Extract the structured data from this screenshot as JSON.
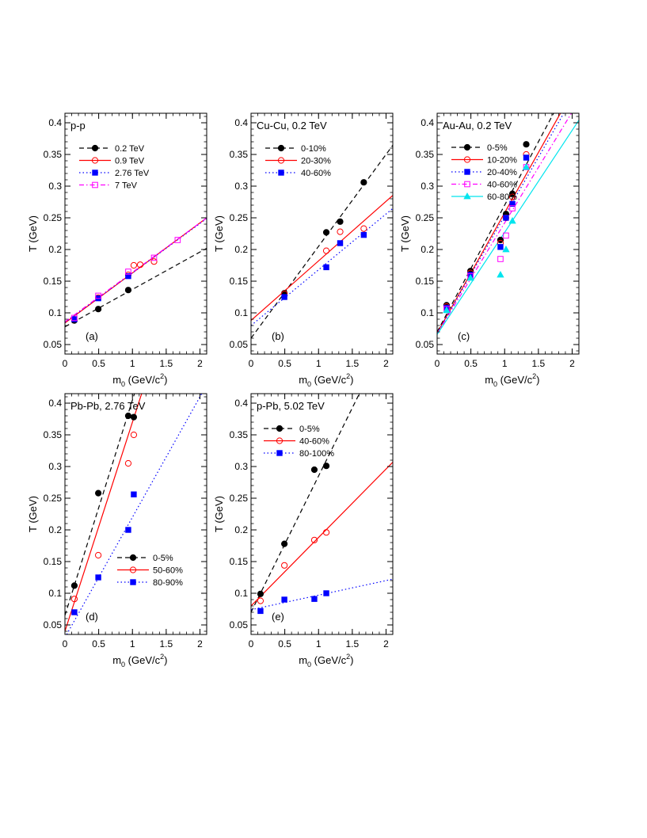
{
  "chart_data": [
    {
      "type": "scatter",
      "panel_tag": "(a)",
      "title": "p-p",
      "xlabel": "m0 (GeV/c2)",
      "ylabel": "T (GeV)",
      "xlim": [
        0,
        2.1
      ],
      "ylim": [
        0.035,
        0.415
      ],
      "xticks": [
        {
          "v": 0,
          "t": "0"
        },
        {
          "v": 0.5,
          "t": "0.5"
        },
        {
          "v": 1,
          "t": "1"
        },
        {
          "v": 1.5,
          "t": "1.5"
        },
        {
          "v": 2,
          "t": "2"
        }
      ],
      "yticks": [
        {
          "v": 0.05,
          "t": "0.05"
        },
        {
          "v": 0.1,
          "t": "0.1"
        },
        {
          "v": 0.15,
          "t": "0.15"
        },
        {
          "v": 0.2,
          "t": "0.2"
        },
        {
          "v": 0.25,
          "t": "0.25"
        },
        {
          "v": 0.3,
          "t": "0.3"
        },
        {
          "v": 0.35,
          "t": "0.35"
        },
        {
          "v": 0.4,
          "t": "0.4"
        }
      ],
      "legend_position": "top-left",
      "series": [
        {
          "name": "0.2 TeV",
          "color": "#000000",
          "marker": "circle-filled",
          "line": "dashed",
          "fit": [
            0.078,
            0.059
          ],
          "points": [
            [
              0.14,
              0.088
            ],
            [
              0.494,
              0.106
            ],
            [
              0.938,
              0.136
            ]
          ]
        },
        {
          "name": "0.9 TeV",
          "color": "#ff0000",
          "marker": "circle-open",
          "line": "solid",
          "fit": [
            0.084,
            0.079
          ],
          "points": [
            [
              0.494,
              0.124
            ],
            [
              0.938,
              0.16
            ],
            [
              1.02,
              0.175
            ],
            [
              1.115,
              0.176
            ],
            [
              1.32,
              0.181
            ]
          ]
        },
        {
          "name": "2.76 TeV",
          "color": "#0000ff",
          "marker": "square-filled",
          "line": "dotted",
          "fit": [
            0.085,
            0.078
          ],
          "points": [
            [
              0.14,
              0.09
            ],
            [
              0.494,
              0.123
            ],
            [
              0.938,
              0.158
            ]
          ]
        },
        {
          "name": "7 TeV",
          "color": "#ff00ff",
          "marker": "square-open",
          "line": "dashdot",
          "fit": [
            0.086,
            0.078
          ],
          "points": [
            [
              0.14,
              0.092
            ],
            [
              0.494,
              0.127
            ],
            [
              0.938,
              0.165
            ],
            [
              1.32,
              0.187
            ],
            [
              1.67,
              0.215
            ]
          ]
        }
      ]
    },
    {
      "type": "scatter",
      "panel_tag": "(b)",
      "title": "Cu-Cu, 0.2 TeV",
      "xlabel": "m0 (GeV/c2)",
      "ylabel": "",
      "xlim": [
        0,
        2.1
      ],
      "ylim": [
        0.035,
        0.415
      ],
      "xticks": [
        {
          "v": 0,
          "t": "0"
        },
        {
          "v": 0.5,
          "t": "0.5"
        },
        {
          "v": 1,
          "t": "1"
        },
        {
          "v": 1.5,
          "t": "1.5"
        },
        {
          "v": 2,
          "t": "2"
        }
      ],
      "yticks": [
        {
          "v": 0.05,
          "t": "0.05"
        },
        {
          "v": 0.1,
          "t": "0.1"
        },
        {
          "v": 0.15,
          "t": "0.15"
        },
        {
          "v": 0.2,
          "t": "0.2"
        },
        {
          "v": 0.25,
          "t": "0.25"
        },
        {
          "v": 0.3,
          "t": "0.3"
        },
        {
          "v": 0.35,
          "t": "0.35"
        },
        {
          "v": 0.4,
          "t": "0.4"
        }
      ],
      "legend_position": "top-left",
      "series": [
        {
          "name": "0-10%",
          "color": "#000000",
          "marker": "circle-filled",
          "line": "dashed",
          "fit": [
            0.06,
            0.145
          ],
          "points": [
            [
              0.494,
              0.131
            ],
            [
              1.115,
              0.227
            ],
            [
              1.32,
              0.244
            ],
            [
              1.67,
              0.306
            ]
          ]
        },
        {
          "name": "20-30%",
          "color": "#ff0000",
          "marker": "circle-open",
          "line": "solid",
          "fit": [
            0.088,
            0.094
          ],
          "points": [
            [
              0.494,
              0.13
            ],
            [
              1.115,
              0.198
            ],
            [
              1.32,
              0.228
            ],
            [
              1.67,
              0.233
            ]
          ]
        },
        {
          "name": "40-60%",
          "color": "#0000ff",
          "marker": "square-filled",
          "line": "dotted",
          "fit": [
            0.08,
            0.088
          ],
          "points": [
            [
              0.494,
              0.125
            ],
            [
              1.115,
              0.172
            ],
            [
              1.32,
              0.21
            ],
            [
              1.67,
              0.223
            ]
          ]
        }
      ]
    },
    {
      "type": "scatter",
      "panel_tag": "(c)",
      "title": "Au-Au, 0.2 TeV",
      "xlabel": "m0 (GeV/c2)",
      "ylabel": "T (GeV)",
      "xlim": [
        0,
        2.1
      ],
      "ylim": [
        0.035,
        0.415
      ],
      "xticks": [
        {
          "v": 0,
          "t": "0"
        },
        {
          "v": 0.5,
          "t": "0.5"
        },
        {
          "v": 1,
          "t": "1"
        },
        {
          "v": 1.5,
          "t": "1.5"
        },
        {
          "v": 2,
          "t": "2"
        }
      ],
      "yticks": [
        {
          "v": 0.05,
          "t": "0.05"
        },
        {
          "v": 0.1,
          "t": "0.1"
        },
        {
          "v": 0.15,
          "t": "0.15"
        },
        {
          "v": 0.2,
          "t": "0.2"
        },
        {
          "v": 0.25,
          "t": "0.25"
        },
        {
          "v": 0.3,
          "t": "0.3"
        },
        {
          "v": 0.35,
          "t": "0.35"
        },
        {
          "v": 0.4,
          "t": "0.4"
        }
      ],
      "legend_position": "top-left",
      "series": [
        {
          "name": "0-5%",
          "color": "#000000",
          "marker": "circle-filled",
          "line": "dashed",
          "fit": [
            0.07,
            0.2
          ],
          "points": [
            [
              0.14,
              0.112
            ],
            [
              0.494,
              0.166
            ],
            [
              0.938,
              0.215
            ],
            [
              1.02,
              0.256
            ],
            [
              1.115,
              0.288
            ],
            [
              1.32,
              0.366
            ]
          ]
        },
        {
          "name": "10-20%",
          "color": "#ff0000",
          "marker": "circle-open",
          "line": "solid",
          "fit": [
            0.068,
            0.19
          ],
          "points": [
            [
              0.14,
              0.11
            ],
            [
              0.494,
              0.163
            ],
            [
              0.938,
              0.21
            ],
            [
              1.02,
              0.25
            ],
            [
              1.115,
              0.283
            ],
            [
              1.32,
              0.35
            ]
          ]
        },
        {
          "name": "20-40%",
          "color": "#0000ff",
          "marker": "square-filled",
          "line": "dotted",
          "fit": [
            0.068,
            0.185
          ],
          "points": [
            [
              0.14,
              0.108
            ],
            [
              0.494,
              0.16
            ],
            [
              0.938,
              0.204
            ],
            [
              1.02,
              0.25
            ],
            [
              1.115,
              0.272
            ],
            [
              1.32,
              0.345
            ]
          ]
        },
        {
          "name": "40-60%",
          "color": "#ff00ff",
          "marker": "square-open",
          "line": "dashdot",
          "fit": [
            0.067,
            0.175
          ],
          "points": [
            [
              0.14,
              0.106
            ],
            [
              0.494,
              0.158
            ],
            [
              0.938,
              0.185
            ],
            [
              1.02,
              0.222
            ],
            [
              1.115,
              0.265
            ],
            [
              1.32,
              0.33
            ]
          ]
        },
        {
          "name": "60-80%",
          "color": "#00e5ee",
          "marker": "triangle-filled",
          "line": "solid",
          "fit": [
            0.066,
            0.161
          ],
          "points": [
            [
              0.14,
              0.104
            ],
            [
              0.494,
              0.155
            ],
            [
              0.938,
              0.16
            ],
            [
              1.02,
              0.2
            ],
            [
              1.115,
              0.245
            ],
            [
              1.32,
              0.33
            ]
          ]
        }
      ]
    },
    {
      "type": "scatter",
      "panel_tag": "(d)",
      "title": "Pb-Pb, 2.76 TeV",
      "xlabel": "m0 (GeV/c2)",
      "ylabel": "T (GeV)",
      "xlim": [
        0,
        2.1
      ],
      "ylim": [
        0.035,
        0.415
      ],
      "xticks": [
        {
          "v": 0,
          "t": "0"
        },
        {
          "v": 0.5,
          "t": "0.5"
        },
        {
          "v": 1,
          "t": "1"
        },
        {
          "v": 1.5,
          "t": "1.5"
        },
        {
          "v": 2,
          "t": "2"
        }
      ],
      "yticks": [
        {
          "v": 0.05,
          "t": "0.05"
        },
        {
          "v": 0.1,
          "t": "0.1"
        },
        {
          "v": 0.15,
          "t": "0.15"
        },
        {
          "v": 0.2,
          "t": "0.2"
        },
        {
          "v": 0.25,
          "t": "0.25"
        },
        {
          "v": 0.3,
          "t": "0.3"
        },
        {
          "v": 0.35,
          "t": "0.35"
        },
        {
          "v": 0.4,
          "t": "0.4"
        }
      ],
      "legend_position": "bottom-right",
      "series": [
        {
          "name": "0-5%",
          "color": "#000000",
          "marker": "circle-filled",
          "line": "dashed",
          "fit": [
            0.065,
            0.34
          ],
          "points": [
            [
              0.14,
              0.112
            ],
            [
              0.494,
              0.258
            ],
            [
              0.938,
              0.38
            ],
            [
              1.02,
              0.378
            ]
          ]
        },
        {
          "name": "50-60%",
          "color": "#ff0000",
          "marker": "circle-open",
          "line": "solid",
          "fit": [
            0.04,
            0.33
          ],
          "points": [
            [
              0.14,
              0.091
            ],
            [
              0.494,
              0.16
            ],
            [
              0.938,
              0.305
            ],
            [
              1.02,
              0.35
            ]
          ]
        },
        {
          "name": "80-90%",
          "color": "#0000ff",
          "marker": "square-filled",
          "line": "dotted",
          "fit": [
            0.03,
            0.19
          ],
          "points": [
            [
              0.14,
              0.07
            ],
            [
              0.494,
              0.125
            ],
            [
              0.938,
              0.2
            ],
            [
              1.02,
              0.256
            ]
          ]
        }
      ]
    },
    {
      "type": "scatter",
      "panel_tag": "(e)",
      "title": "p-Pb, 5.02 TeV",
      "xlabel": "m0 (GeV/c2)",
      "ylabel": "T (GeV)",
      "xlim": [
        0,
        2.1
      ],
      "ylim": [
        0.035,
        0.415
      ],
      "xticks": [
        {
          "v": 0,
          "t": "0"
        },
        {
          "v": 0.5,
          "t": "0.5"
        },
        {
          "v": 1,
          "t": "1"
        },
        {
          "v": 1.5,
          "t": "1.5"
        },
        {
          "v": 2,
          "t": "2"
        }
      ],
      "yticks": [
        {
          "v": 0.05,
          "t": "0.05"
        },
        {
          "v": 0.1,
          "t": "0.1"
        },
        {
          "v": 0.15,
          "t": "0.15"
        },
        {
          "v": 0.2,
          "t": "0.2"
        },
        {
          "v": 0.25,
          "t": "0.25"
        },
        {
          "v": 0.3,
          "t": "0.3"
        },
        {
          "v": 0.35,
          "t": "0.35"
        },
        {
          "v": 0.4,
          "t": "0.4"
        }
      ],
      "legend_position": "top-left",
      "series": [
        {
          "name": "0-5%",
          "color": "#000000",
          "marker": "circle-filled",
          "line": "dashed",
          "fit": [
            0.07,
            0.215
          ],
          "points": [
            [
              0.14,
              0.099
            ],
            [
              0.494,
              0.178
            ],
            [
              0.938,
              0.295
            ],
            [
              1.115,
              0.301
            ]
          ]
        },
        {
          "name": "40-60%",
          "color": "#ff0000",
          "marker": "circle-open",
          "line": "solid",
          "fit": [
            0.08,
            0.108
          ],
          "points": [
            [
              0.14,
              0.088
            ],
            [
              0.494,
              0.144
            ],
            [
              0.938,
              0.184
            ],
            [
              1.115,
              0.196
            ]
          ]
        },
        {
          "name": "80-100%",
          "color": "#0000ff",
          "marker": "square-filled",
          "line": "dotted",
          "fit": [
            0.074,
            0.023
          ],
          "points": [
            [
              0.14,
              0.072
            ],
            [
              0.494,
              0.09
            ],
            [
              0.938,
              0.091
            ],
            [
              1.115,
              0.1
            ]
          ]
        }
      ]
    }
  ]
}
